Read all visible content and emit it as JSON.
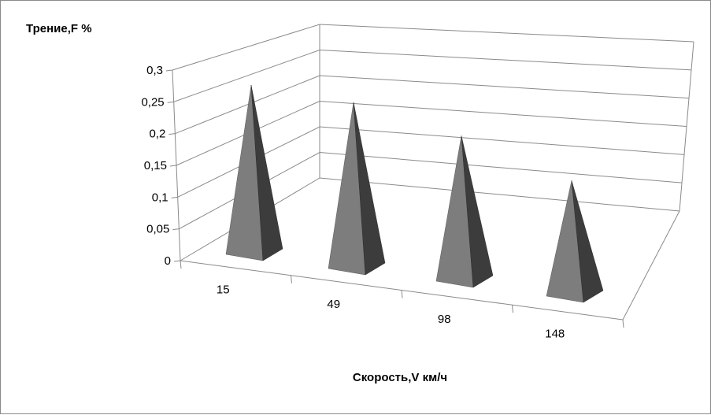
{
  "chart_data": {
    "type": "bar",
    "bar_shape": "pyramid-3d",
    "categories": [
      "15",
      "49",
      "98",
      "148"
    ],
    "series": [
      {
        "values": [
          0.29,
          0.285,
          0.25,
          0.2
        ]
      }
    ],
    "ylabel": "Трение,F %",
    "xlabel": "Скорость,V км/ч",
    "ylim": [
      0,
      0.3
    ],
    "yticks": [
      "0",
      "0,05",
      "0,1",
      "0,15",
      "0,2",
      "0,25",
      "0,3"
    ],
    "grid": true,
    "legend": "none",
    "colors": {
      "pyramid_face": "#7d7d7d",
      "pyramid_side": "#3c3c3c",
      "grid": "#8a8a8a"
    }
  }
}
